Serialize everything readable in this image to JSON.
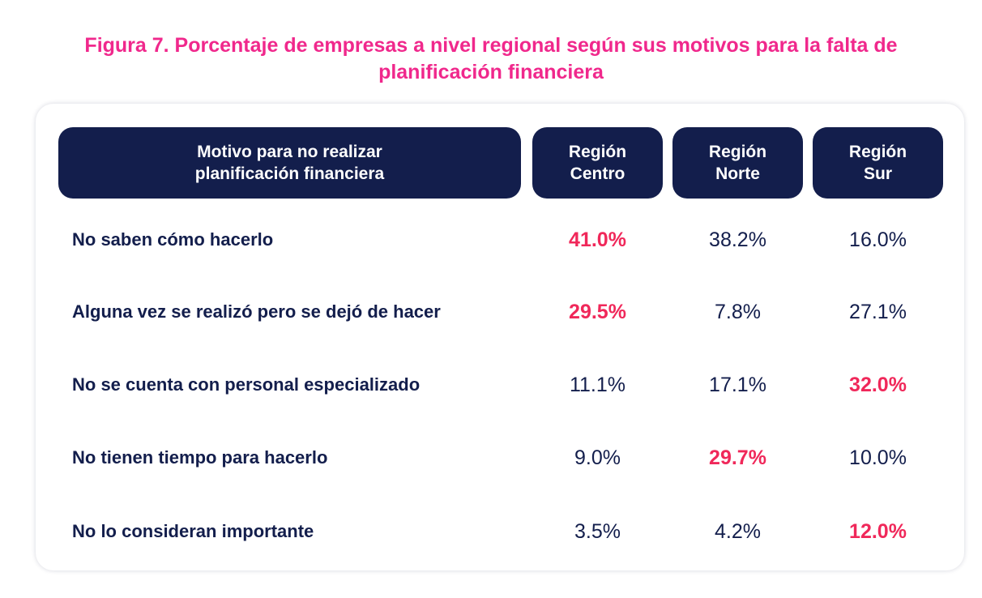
{
  "chart_data": {
    "type": "table",
    "title": "Figura 7. Porcentaje de empresas a nivel regional según sus motivos para la falta de planificación financiera",
    "headers": {
      "motivo": [
        "Motivo para no realizar",
        "planificación financiera"
      ],
      "regions": [
        [
          "Región",
          "Centro"
        ],
        [
          "Región",
          "Norte"
        ],
        [
          "Región",
          "Sur"
        ]
      ]
    },
    "highlight_color": "#f0285a",
    "title_color": "#f0288c",
    "header_color": "#131e4c",
    "rows": [
      {
        "label": "No saben cómo hacerlo",
        "values": [
          "41.0%",
          "38.2%",
          "16.0%"
        ],
        "highlight": [
          true,
          false,
          false
        ]
      },
      {
        "label": "Alguna vez se realizó pero se dejó de hacer",
        "values": [
          "29.5%",
          "7.8%",
          "27.1%"
        ],
        "highlight": [
          true,
          false,
          false
        ]
      },
      {
        "label": "No se cuenta con personal especializado",
        "values": [
          "11.1%",
          "17.1%",
          "32.0%"
        ],
        "highlight": [
          false,
          false,
          true
        ]
      },
      {
        "label": "No tienen tiempo para hacerlo",
        "values": [
          "9.0%",
          "29.7%",
          "10.0%"
        ],
        "highlight": [
          false,
          true,
          false
        ]
      },
      {
        "label": "No lo consideran importante",
        "values": [
          "3.5%",
          "4.2%",
          "12.0%"
        ],
        "highlight": [
          false,
          false,
          true
        ]
      }
    ]
  }
}
